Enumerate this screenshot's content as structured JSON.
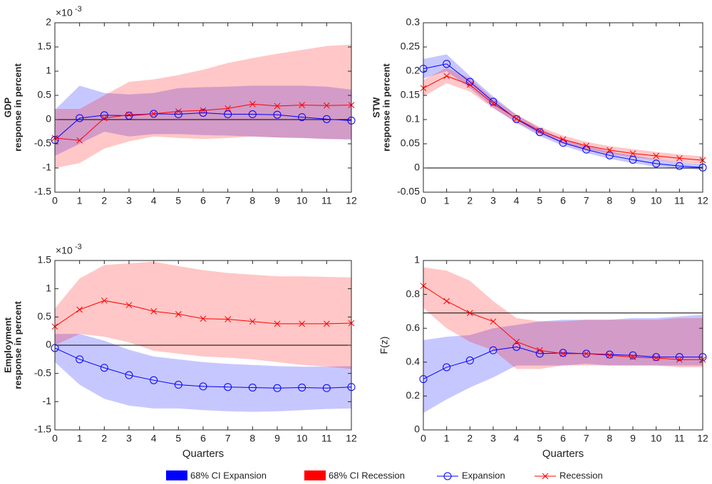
{
  "chart_data": [
    {
      "type": "line",
      "ylabel": [
        "GDP",
        "response in percent"
      ],
      "y_multiplier": {
        "base": "×10",
        "exponent": "-3"
      },
      "x": [
        0,
        1,
        2,
        3,
        4,
        5,
        6,
        7,
        8,
        9,
        10,
        11,
        12
      ],
      "xlim": [
        0,
        12
      ],
      "xticks": [
        0,
        1,
        2,
        3,
        4,
        5,
        6,
        7,
        8,
        9,
        10,
        11,
        12
      ],
      "ylim": [
        -1.5,
        2
      ],
      "yticks": [
        -1.5,
        -1,
        -0.5,
        0,
        0.5,
        1,
        1.5,
        2
      ],
      "hline": 0,
      "bands": [
        {
          "name": "68% CI Expansion",
          "color": "#0000ff",
          "alpha": 0.22,
          "lower": [
            -0.75,
            -0.5,
            -0.25,
            -0.35,
            -0.3,
            -0.3,
            -0.32,
            -0.33,
            -0.35,
            -0.37,
            -0.38,
            -0.4,
            -0.42
          ],
          "upper": [
            0.2,
            0.7,
            0.55,
            0.52,
            0.55,
            0.65,
            0.67,
            0.68,
            0.7,
            0.7,
            0.7,
            0.68,
            0.62
          ]
        },
        {
          "name": "68% CI Recession",
          "color": "#ff0000",
          "alpha": 0.22,
          "lower": [
            -1.0,
            -0.9,
            -0.6,
            -0.45,
            -0.35,
            -0.38,
            -0.4,
            -0.38,
            -0.35,
            -0.37,
            -0.38,
            -0.4,
            -0.4
          ],
          "upper": [
            0.22,
            0.22,
            0.5,
            0.78,
            0.83,
            0.92,
            1.03,
            1.17,
            1.27,
            1.36,
            1.44,
            1.52,
            1.55
          ]
        }
      ],
      "series": [
        {
          "name": "Expansion",
          "color": "#0000ff",
          "marker": "circle",
          "values": [
            -0.42,
            0.03,
            0.09,
            0.08,
            0.12,
            0.11,
            0.14,
            0.11,
            0.11,
            0.1,
            0.05,
            0.01,
            -0.02
          ]
        },
        {
          "name": "Recession",
          "color": "#ff0000",
          "marker": "x",
          "values": [
            -0.38,
            -0.43,
            0.03,
            0.1,
            0.12,
            0.17,
            0.19,
            0.23,
            0.32,
            0.28,
            0.3,
            0.29,
            0.3
          ]
        }
      ]
    },
    {
      "type": "line",
      "ylabel": [
        "STW",
        "response in percent"
      ],
      "x": [
        0,
        1,
        2,
        3,
        4,
        5,
        6,
        7,
        8,
        9,
        10,
        11,
        12
      ],
      "xlim": [
        0,
        12
      ],
      "xticks": [
        0,
        1,
        2,
        3,
        4,
        5,
        6,
        7,
        8,
        9,
        10,
        11,
        12
      ],
      "ylim": [
        -0.05,
        0.3
      ],
      "yticks": [
        -0.05,
        0,
        0.05,
        0.1,
        0.15,
        0.2,
        0.25,
        0.3
      ],
      "hline": 0,
      "bands": [
        {
          "name": "68% CI Expansion",
          "color": "#0000ff",
          "alpha": 0.22,
          "lower": [
            0.185,
            0.2,
            0.165,
            0.125,
            0.093,
            0.066,
            0.046,
            0.031,
            0.019,
            0.01,
            0.003,
            -0.001,
            -0.004
          ],
          "upper": [
            0.225,
            0.235,
            0.19,
            0.148,
            0.11,
            0.082,
            0.06,
            0.045,
            0.034,
            0.026,
            0.018,
            0.012,
            0.008
          ]
        },
        {
          "name": "68% CI Recession",
          "color": "#ff0000",
          "alpha": 0.22,
          "lower": [
            0.148,
            0.175,
            0.158,
            0.123,
            0.094,
            0.07,
            0.052,
            0.039,
            0.029,
            0.022,
            0.017,
            0.012,
            0.009
          ],
          "upper": [
            0.182,
            0.207,
            0.185,
            0.143,
            0.11,
            0.085,
            0.067,
            0.054,
            0.045,
            0.039,
            0.033,
            0.028,
            0.024
          ]
        }
      ],
      "series": [
        {
          "name": "Expansion",
          "color": "#0000ff",
          "marker": "circle",
          "values": [
            0.205,
            0.215,
            0.178,
            0.137,
            0.101,
            0.074,
            0.052,
            0.038,
            0.026,
            0.017,
            0.009,
            0.004,
            0.001
          ]
        },
        {
          "name": "Recession",
          "color": "#ff0000",
          "marker": "x",
          "values": [
            0.165,
            0.19,
            0.172,
            0.133,
            0.102,
            0.077,
            0.059,
            0.046,
            0.037,
            0.03,
            0.025,
            0.02,
            0.016
          ]
        }
      ]
    },
    {
      "type": "line",
      "ylabel": [
        "Employment",
        "response in percent"
      ],
      "y_multiplier": {
        "base": "×10",
        "exponent": "-3"
      },
      "xlabel": "Quarters",
      "x": [
        0,
        1,
        2,
        3,
        4,
        5,
        6,
        7,
        8,
        9,
        10,
        11,
        12
      ],
      "xlim": [
        0,
        12
      ],
      "xticks": [
        0,
        1,
        2,
        3,
        4,
        5,
        6,
        7,
        8,
        9,
        10,
        11,
        12
      ],
      "ylim": [
        -1.5,
        1.5
      ],
      "yticks": [
        -1.5,
        -1,
        -0.5,
        0,
        0.5,
        1,
        1.5
      ],
      "hline": 0,
      "bands": [
        {
          "name": "68% CI Expansion",
          "color": "#0000ff",
          "alpha": 0.22,
          "lower": [
            -0.3,
            -0.7,
            -0.95,
            -1.07,
            -1.12,
            -1.12,
            -1.15,
            -1.17,
            -1.18,
            -1.17,
            -1.15,
            -1.13,
            -1.12
          ],
          "upper": [
            0.2,
            0.2,
            0.08,
            -0.08,
            -0.2,
            -0.25,
            -0.3,
            -0.33,
            -0.35,
            -0.37,
            -0.38,
            -0.38,
            -0.37
          ]
        },
        {
          "name": "68% CI Recession",
          "color": "#ff0000",
          "alpha": 0.22,
          "lower": [
            0.0,
            0.2,
            0.15,
            0.05,
            -0.1,
            -0.15,
            -0.2,
            -0.22,
            -0.25,
            -0.3,
            -0.35,
            -0.38,
            -0.42
          ],
          "upper": [
            0.65,
            1.18,
            1.42,
            1.45,
            1.48,
            1.4,
            1.33,
            1.28,
            1.25,
            1.22,
            1.22,
            1.21,
            1.2
          ]
        }
      ],
      "series": [
        {
          "name": "Expansion",
          "color": "#0000ff",
          "marker": "circle",
          "values": [
            -0.05,
            -0.25,
            -0.4,
            -0.53,
            -0.62,
            -0.7,
            -0.73,
            -0.74,
            -0.75,
            -0.76,
            -0.75,
            -0.76,
            -0.74
          ]
        },
        {
          "name": "Recession",
          "color": "#ff0000",
          "marker": "x",
          "values": [
            0.33,
            0.63,
            0.79,
            0.71,
            0.6,
            0.55,
            0.47,
            0.46,
            0.42,
            0.38,
            0.38,
            0.38,
            0.39
          ]
        }
      ]
    },
    {
      "type": "line",
      "ylabel": [
        "F(z)"
      ],
      "xlabel": "Quarters",
      "x": [
        0,
        1,
        2,
        3,
        4,
        5,
        6,
        7,
        8,
        9,
        10,
        11,
        12
      ],
      "xlim": [
        0,
        12
      ],
      "xticks": [
        0,
        1,
        2,
        3,
        4,
        5,
        6,
        7,
        8,
        9,
        10,
        11,
        12
      ],
      "ylim": [
        0,
        1
      ],
      "yticks": [
        0,
        0.2,
        0.4,
        0.6,
        0.8,
        1
      ],
      "hline": 0.69,
      "bands": [
        {
          "name": "68% CI Expansion",
          "color": "#0000ff",
          "alpha": 0.22,
          "lower": [
            0.1,
            0.18,
            0.25,
            0.31,
            0.38,
            0.38,
            0.38,
            0.39,
            0.38,
            0.38,
            0.38,
            0.38,
            0.38
          ],
          "upper": [
            0.53,
            0.55,
            0.56,
            0.6,
            0.62,
            0.64,
            0.65,
            0.65,
            0.65,
            0.66,
            0.66,
            0.67,
            0.68
          ]
        },
        {
          "name": "68% CI Recession",
          "color": "#ff0000",
          "alpha": 0.22,
          "lower": [
            0.72,
            0.6,
            0.52,
            0.47,
            0.36,
            0.36,
            0.38,
            0.38,
            0.38,
            0.38,
            0.38,
            0.37,
            0.37
          ],
          "upper": [
            0.96,
            0.94,
            0.88,
            0.76,
            0.66,
            0.64,
            0.64,
            0.65,
            0.65,
            0.65,
            0.65,
            0.66,
            0.66
          ]
        }
      ],
      "series": [
        {
          "name": "Expansion",
          "color": "#0000ff",
          "marker": "circle",
          "values": [
            0.3,
            0.37,
            0.41,
            0.47,
            0.49,
            0.45,
            0.455,
            0.45,
            0.445,
            0.44,
            0.43,
            0.43,
            0.43
          ]
        },
        {
          "name": "Recession",
          "color": "#ff0000",
          "marker": "x",
          "values": [
            0.85,
            0.76,
            0.69,
            0.64,
            0.52,
            0.47,
            0.45,
            0.45,
            0.44,
            0.43,
            0.425,
            0.415,
            0.415
          ]
        }
      ]
    }
  ]
}
